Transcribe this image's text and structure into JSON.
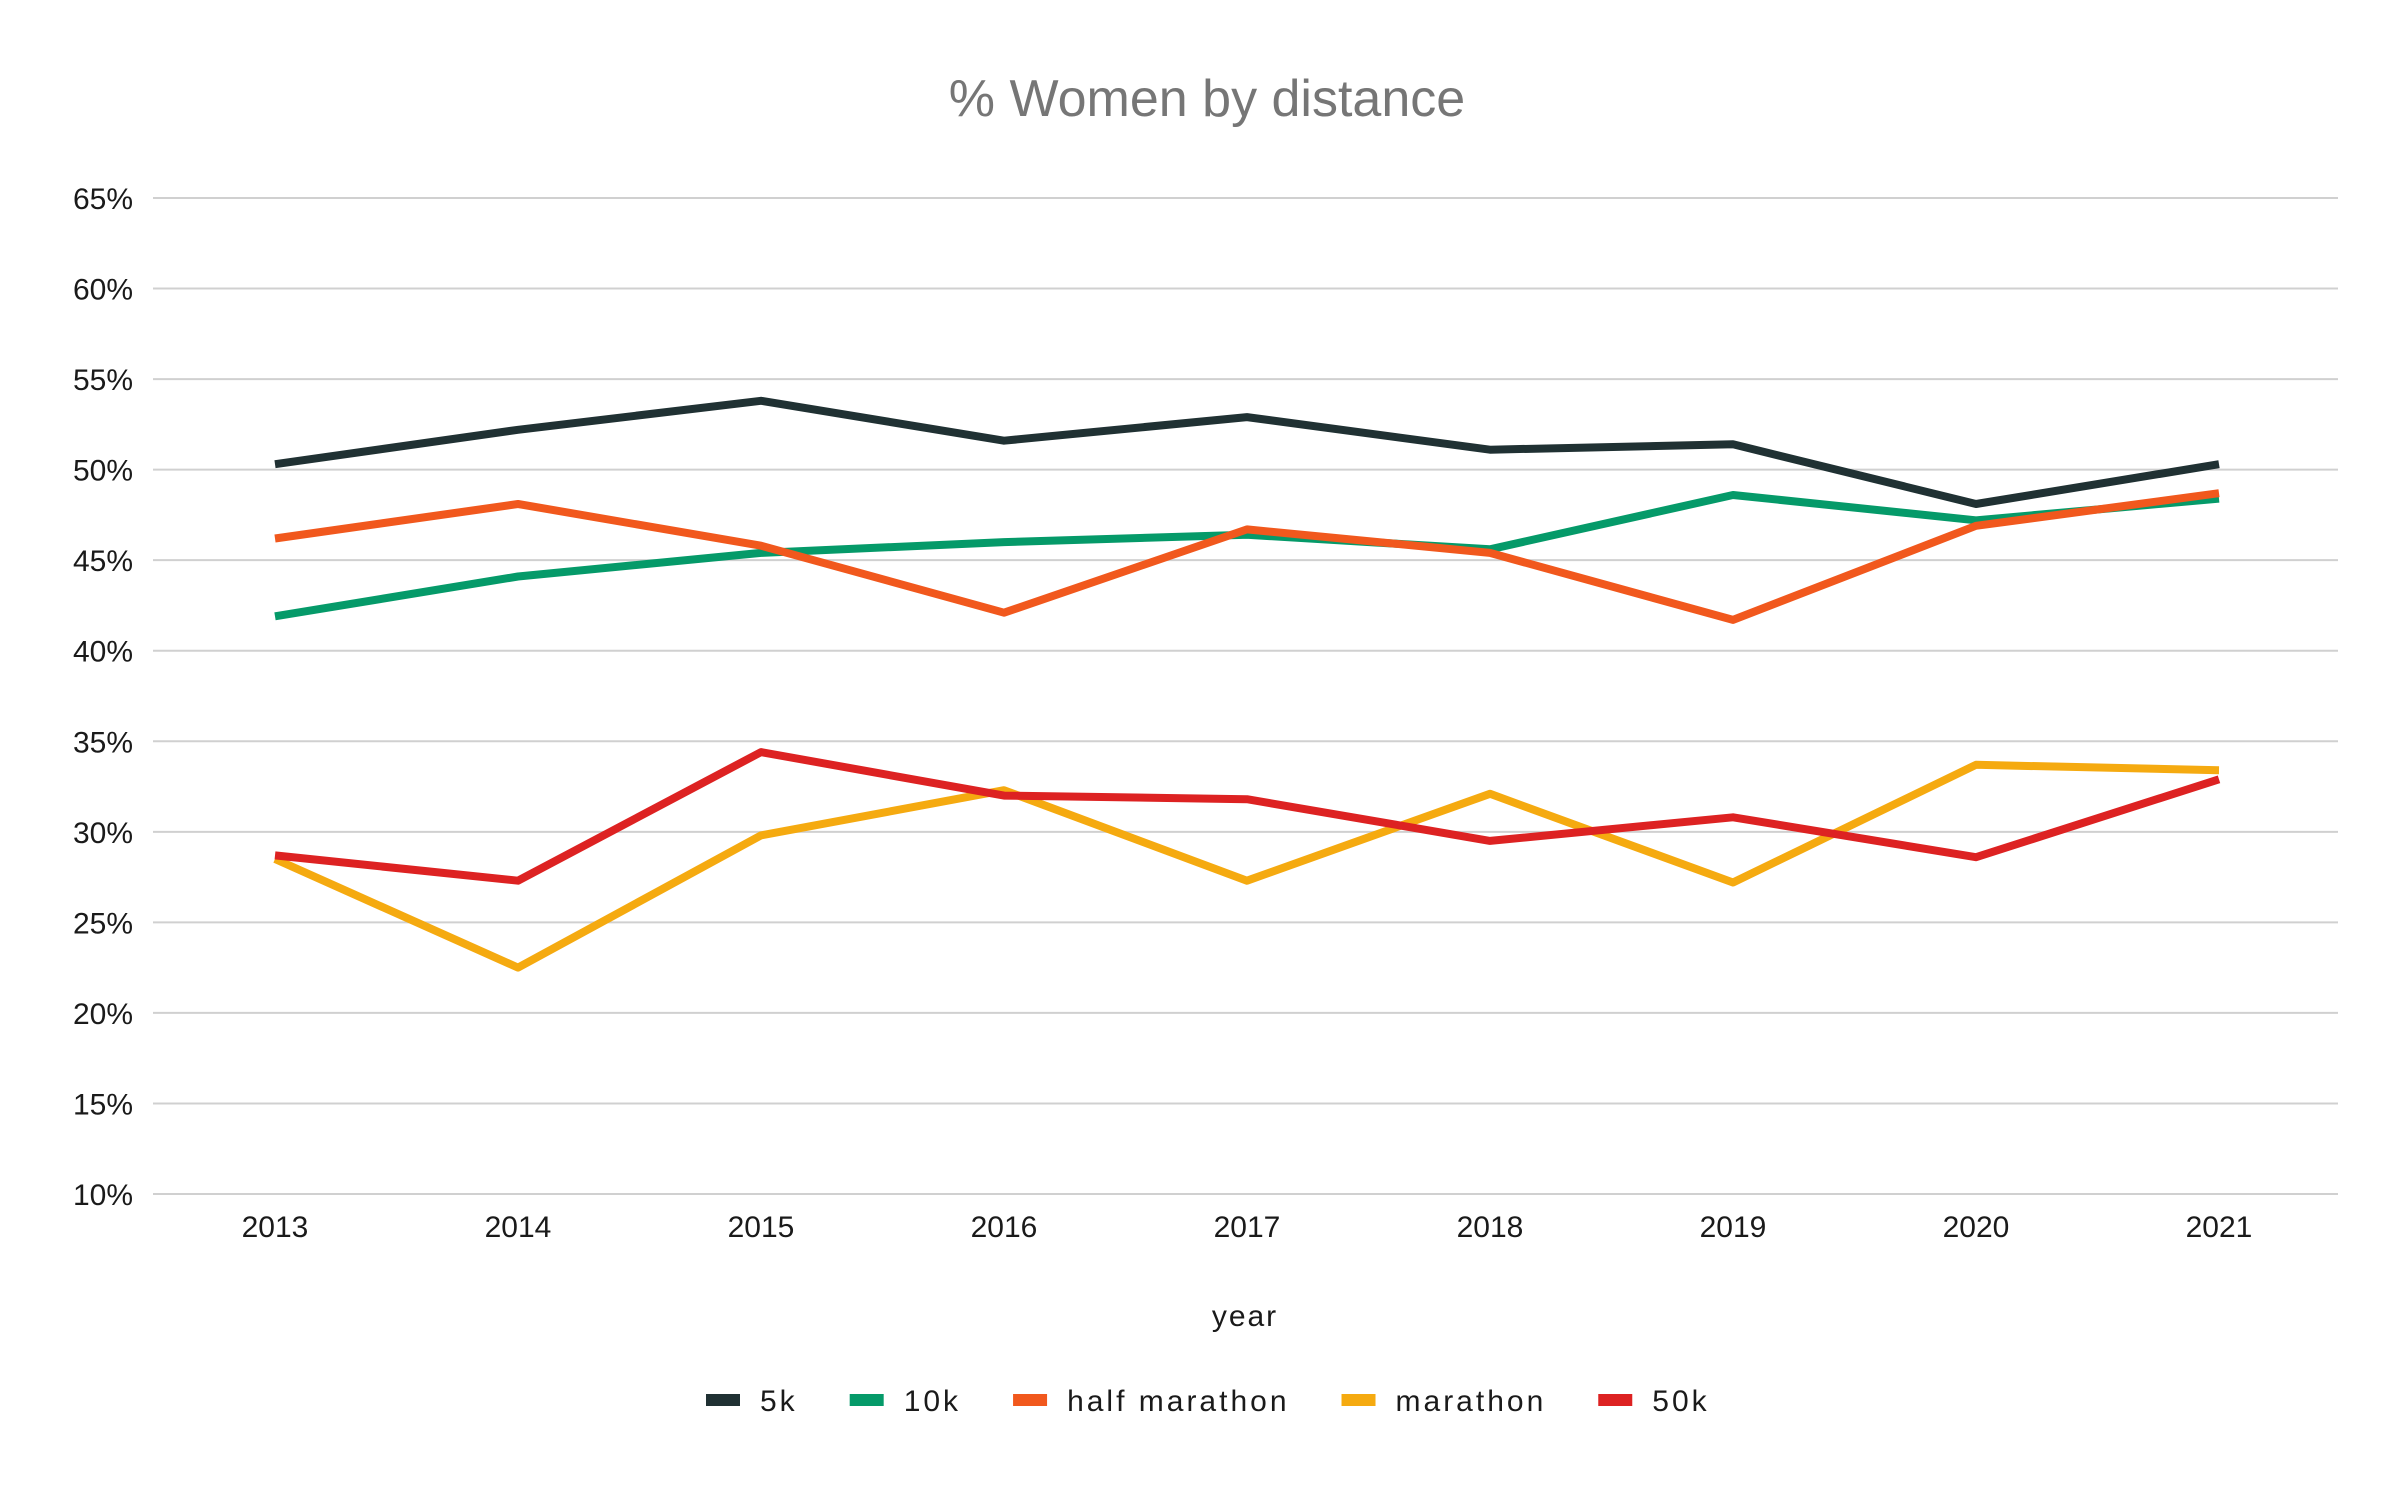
{
  "chart_data": {
    "type": "line",
    "title": "% Women by distance",
    "xlabel": "year",
    "ylabel": "",
    "ylim": [
      0.1,
      0.65
    ],
    "y_ticks": [
      0.1,
      0.15,
      0.2,
      0.25,
      0.3,
      0.35,
      0.4,
      0.45,
      0.5,
      0.55,
      0.6,
      0.65
    ],
    "y_tick_labels": [
      "10%",
      "15%",
      "20%",
      "25%",
      "30%",
      "35%",
      "40%",
      "45%",
      "50%",
      "55%",
      "60%",
      "65%"
    ],
    "categories": [
      "2013",
      "2014",
      "2015",
      "2016",
      "2017",
      "2018",
      "2019",
      "2020",
      "2021"
    ],
    "grid": true,
    "legend_position": "bottom",
    "series": [
      {
        "name": "5k",
        "color": "#203133",
        "values": [
          0.503,
          0.522,
          0.538,
          0.516,
          0.529,
          0.511,
          0.514,
          0.481,
          0.503
        ]
      },
      {
        "name": "10k",
        "color": "#059a69",
        "values": [
          0.419,
          0.441,
          0.454,
          0.46,
          0.464,
          0.456,
          0.486,
          0.472,
          0.484
        ]
      },
      {
        "name": "half marathon",
        "color": "#f1581d",
        "values": [
          0.462,
          0.481,
          0.458,
          0.421,
          0.467,
          0.454,
          0.417,
          0.469,
          0.487
        ]
      },
      {
        "name": "marathon",
        "color": "#f5aa10",
        "values": [
          0.285,
          0.225,
          0.298,
          0.323,
          0.273,
          0.321,
          0.272,
          0.337,
          0.334
        ]
      },
      {
        "name": "50k",
        "color": "#dd2222",
        "values": [
          0.287,
          0.273,
          0.344,
          0.32,
          0.318,
          0.295,
          0.308,
          0.286,
          0.329
        ]
      }
    ]
  }
}
